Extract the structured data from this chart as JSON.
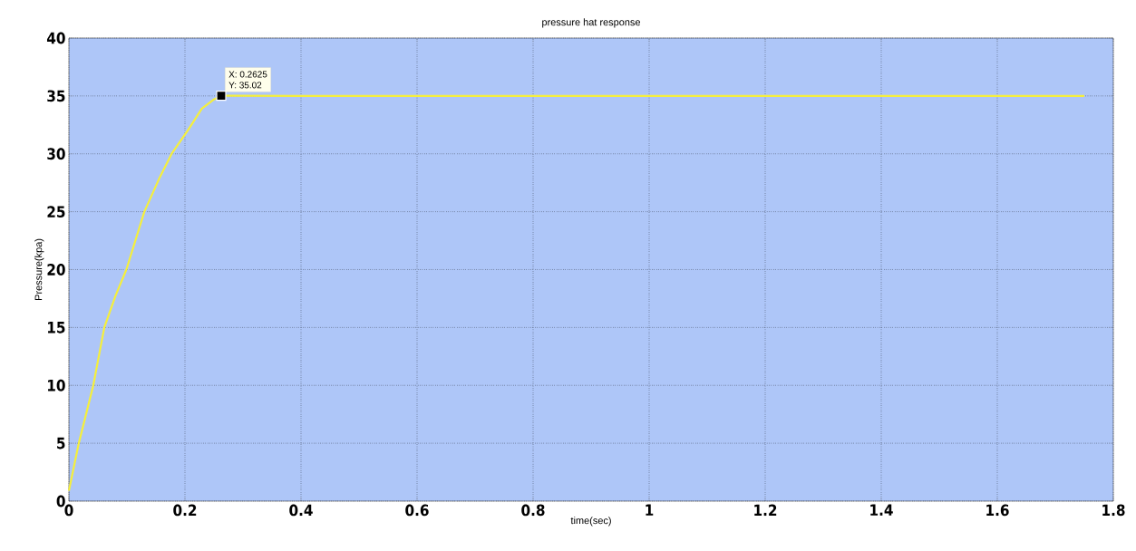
{
  "chart_data": {
    "type": "line",
    "title": "pressure hat response",
    "xlabel": "time(sec)",
    "ylabel": "Pressure(kpa)",
    "xlim": [
      0,
      1.8
    ],
    "ylim": [
      0,
      40
    ],
    "xticks": [
      0,
      0.2,
      0.4,
      0.6,
      0.8,
      1,
      1.2,
      1.4,
      1.6,
      1.8
    ],
    "yticks": [
      0,
      5,
      10,
      15,
      20,
      25,
      30,
      35,
      40
    ],
    "grid": true,
    "series": [
      {
        "color": "#f5ef3c",
        "x": [
          0,
          0.017,
          0.042,
          0.061,
          0.08,
          0.099,
          0.13,
          0.155,
          0.177,
          0.206,
          0.229,
          0.25,
          0.2625,
          0.4,
          0.6,
          0.8,
          1.0,
          1.2,
          1.4,
          1.6,
          1.75
        ],
        "values": [
          0.9,
          5,
          10,
          15,
          17.7,
          20,
          25,
          27.8,
          30,
          32.1,
          33.9,
          34.7,
          35.02,
          35,
          35,
          35,
          35,
          35,
          35,
          35,
          35
        ]
      },
      {
        "type": "scatter",
        "marker": "square",
        "color": "#000000",
        "x": [
          0.2625
        ],
        "values": [
          35.02
        ]
      }
    ],
    "annotations": [
      {
        "text": "X: 0.2625",
        "x": 0.2625,
        "y": 35.02
      },
      "Y: 35.02"
    ]
  }
}
